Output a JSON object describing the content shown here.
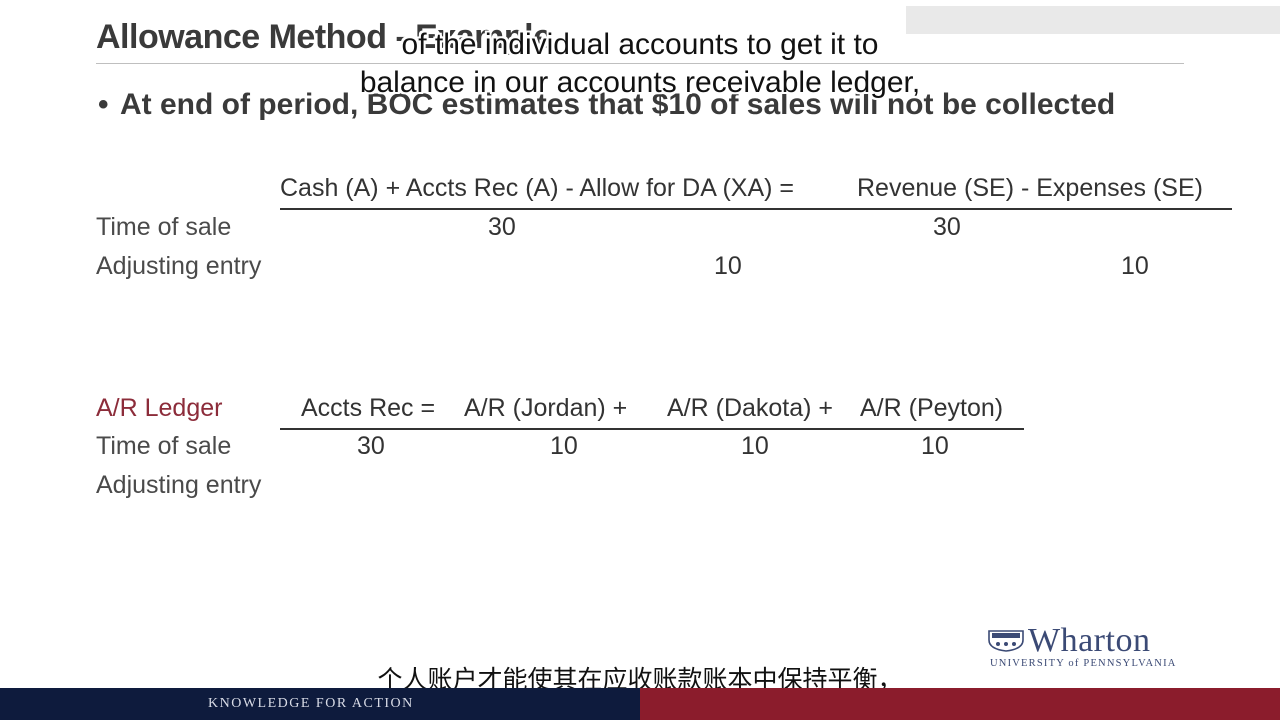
{
  "slide": {
    "title": "Allowance Method - Example",
    "bullet_symbol": "•",
    "bullet": "At end of period, BOC estimates that $10 of sales will not be collected"
  },
  "equation_table": {
    "header_left": "Cash (A) + Accts Rec (A) - Allow for DA (XA) =",
    "header_right": "Revenue (SE) - Expenses (SE)",
    "rows": [
      {
        "label": "Time of sale",
        "cash": "30",
        "revenue": "30"
      },
      {
        "label": "Adjusting entry",
        "allowance": "10",
        "expenses": "10"
      }
    ]
  },
  "ledger_table": {
    "label": "A/R Ledger",
    "headers": [
      "Accts Rec =",
      "A/R (Jordan) +",
      "A/R (Dakota) +",
      "A/R (Peyton)"
    ],
    "rows": [
      {
        "label": "Time of sale",
        "values": [
          "30",
          "10",
          "10",
          "10"
        ]
      },
      {
        "label": "Adjusting entry",
        "values": [
          "",
          "",
          "",
          ""
        ]
      }
    ]
  },
  "subtitles": {
    "english_line1": "of the individual accounts to get it to",
    "english_line2": "balance in our accounts receivable ledger,",
    "chinese": "个人账户才能使其在应收账款账本中保持平衡，"
  },
  "branding": {
    "logo_word": "Wharton",
    "logo_sub": "UNIVERSITY of PENNSYLVANIA",
    "footer_tagline": "KNOWLEDGE FOR ACTION",
    "colors": {
      "navy": "#0e1b3d",
      "crimson": "#8b1c2c",
      "logo_blue": "#3b4a75",
      "ledger_label": "#8c2c3a"
    }
  }
}
